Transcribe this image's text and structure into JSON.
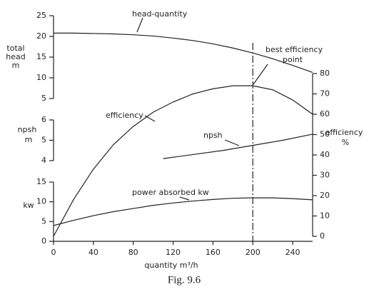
{
  "caption": "Fig. 9.6",
  "chart_data": [
    {
      "type": "line",
      "ylabel": [
        "total",
        "head",
        "m"
      ],
      "ylim": [
        5,
        25
      ],
      "yticks": [
        5,
        10,
        15,
        20,
        25
      ],
      "annotation": [
        "head-quantity"
      ],
      "color": "#222222",
      "series": [
        {
          "name": "head-quantity",
          "color": "#222222",
          "x": [
            0,
            20,
            40,
            60,
            80,
            100,
            120,
            140,
            160,
            180,
            200,
            220,
            240,
            260
          ],
          "values": [
            20.8,
            20.8,
            20.7,
            20.6,
            20.4,
            20.1,
            19.6,
            19,
            18.2,
            17.2,
            16,
            14.6,
            13,
            11.3
          ]
        }
      ]
    },
    {
      "type": "line",
      "ylabel": [
        "efficiency",
        "%"
      ],
      "ylim": [
        0,
        80
      ],
      "yticks": [
        0,
        10,
        20,
        30,
        40,
        50,
        60,
        70,
        80
      ],
      "annotation": [
        "efficiency",
        "best efficiency",
        "point"
      ],
      "marker_x": 200,
      "color": "#222222",
      "series": [
        {
          "name": "efficiency",
          "color": "#222222",
          "x": [
            0,
            20,
            40,
            60,
            80,
            100,
            120,
            140,
            160,
            180,
            200,
            220,
            240,
            260
          ],
          "values": [
            0,
            18,
            33,
            45,
            54,
            61,
            66,
            70,
            72.5,
            74,
            74,
            72,
            67,
            60
          ]
        }
      ]
    },
    {
      "type": "line",
      "ylabel": [
        "npsh",
        "m"
      ],
      "ylim": [
        4,
        6
      ],
      "yticks": [
        4,
        5,
        6
      ],
      "annotation": [
        "npsh"
      ],
      "color": "#222222",
      "series": [
        {
          "name": "npsh",
          "color": "#222222",
          "x": [
            110,
            140,
            170,
            200,
            230,
            260
          ],
          "values": [
            4.1,
            4.3,
            4.5,
            4.75,
            5.0,
            5.3
          ]
        }
      ]
    },
    {
      "type": "line",
      "ylabel": [
        "kw"
      ],
      "ylim": [
        0,
        15
      ],
      "yticks": [
        0,
        5,
        10,
        15
      ],
      "xlabel": "quantity  m³/h",
      "xlim": [
        0,
        260
      ],
      "xticks": [
        0,
        40,
        80,
        120,
        160,
        200,
        240
      ],
      "annotation": [
        "power absorbed  kw"
      ],
      "color": "#222222",
      "series": [
        {
          "name": "power absorbed",
          "color": "#222222",
          "x": [
            0,
            20,
            40,
            60,
            80,
            100,
            120,
            140,
            160,
            180,
            200,
            220,
            240,
            260
          ],
          "values": [
            4,
            5.3,
            6.5,
            7.5,
            8.3,
            9.1,
            9.7,
            10.2,
            10.6,
            10.9,
            11,
            11,
            10.8,
            10.5
          ]
        }
      ]
    }
  ]
}
